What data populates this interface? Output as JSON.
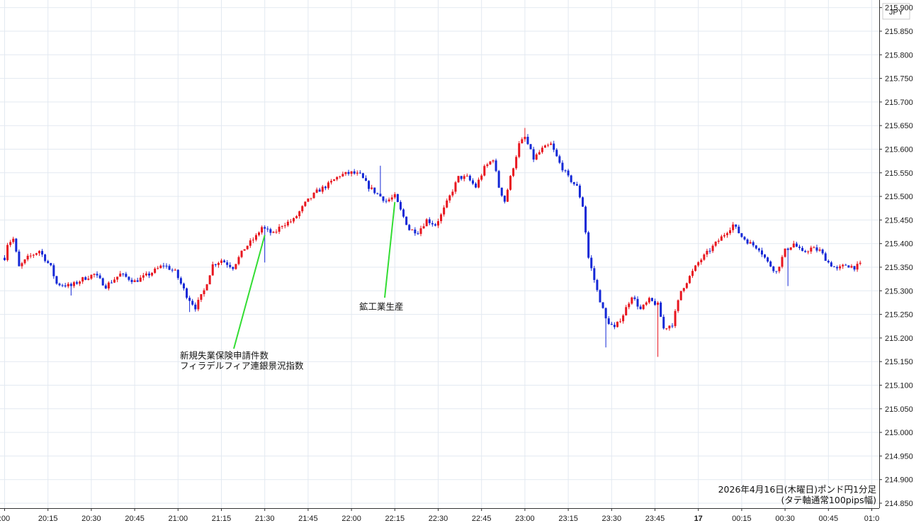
{
  "chart_data": {
    "type": "candlestick",
    "currency_label": "JPY",
    "caption_line1": "2026年4月16日(木曜日)ポンド円1分足",
    "caption_line2": "(タテ軸通常100pips幅)",
    "y_ticks": [
      "215.900",
      "215.850",
      "215.800",
      "215.750",
      "215.700",
      "215.650",
      "215.600",
      "215.550",
      "215.500",
      "215.450",
      "215.400",
      "215.350",
      "215.300",
      "215.250",
      "215.200",
      "215.150",
      "215.100",
      "215.050",
      "215.000",
      "214.950",
      "214.900",
      "214.850"
    ],
    "x_ticks": [
      ":00",
      "20:15",
      "20:30",
      "20:45",
      "21:00",
      "21:15",
      "21:30",
      "21:45",
      "22:00",
      "22:15",
      "22:30",
      "22:45",
      "23:00",
      "23:15",
      "23:30",
      "23:45",
      "17",
      "00:15",
      "00:30",
      "00:45",
      "01:0"
    ],
    "ylim": [
      214.85,
      215.9
    ],
    "grid": true,
    "up_color": "#e8161f",
    "down_color": "#1428d6",
    "annotation_color": "#33dd33",
    "annotations": [
      {
        "time": "21:30",
        "lines": [
          "新規失業保険申請件数",
          "フィラデルフィア連銀景況指数"
        ]
      },
      {
        "time": "22:15",
        "lines": [
          "鉱工業生産"
        ]
      }
    ],
    "close_path_hhmm_price": [
      [
        "20:00",
        215.37
      ],
      [
        "20:01",
        215.4
      ],
      [
        "20:03",
        215.41
      ],
      [
        "20:05",
        215.35
      ],
      [
        "20:08",
        215.37
      ],
      [
        "20:12",
        215.385
      ],
      [
        "20:16",
        215.35
      ],
      [
        "20:18",
        215.315
      ],
      [
        "20:23",
        215.31
      ],
      [
        "20:27",
        215.325
      ],
      [
        "20:31",
        215.335
      ],
      [
        "20:35",
        215.31
      ],
      [
        "20:40",
        215.335
      ],
      [
        "20:45",
        215.32
      ],
      [
        "20:50",
        215.335
      ],
      [
        "20:55",
        215.355
      ],
      [
        "20:59",
        215.34
      ],
      [
        "21:03",
        215.29
      ],
      [
        "21:06",
        215.265
      ],
      [
        "21:09",
        215.3
      ],
      [
        "21:12",
        215.355
      ],
      [
        "21:15",
        215.365
      ],
      [
        "21:19",
        215.35
      ],
      [
        "21:23",
        215.39
      ],
      [
        "21:27",
        215.415
      ],
      [
        "21:29",
        215.435
      ],
      [
        "21:30",
        215.43
      ],
      [
        "21:33",
        215.42
      ],
      [
        "21:36",
        215.44
      ],
      [
        "21:40",
        215.45
      ],
      [
        "21:44",
        215.485
      ],
      [
        "21:48",
        215.51
      ],
      [
        "21:52",
        215.525
      ],
      [
        "21:56",
        215.545
      ],
      [
        "22:00",
        215.55
      ],
      [
        "22:03",
        215.545
      ],
      [
        "22:06",
        215.52
      ],
      [
        "22:09",
        215.505
      ],
      [
        "22:12",
        215.49
      ],
      [
        "22:15",
        215.5
      ],
      [
        "22:17",
        215.47
      ],
      [
        "22:20",
        215.43
      ],
      [
        "22:23",
        215.425
      ],
      [
        "22:26",
        215.45
      ],
      [
        "22:29",
        215.44
      ],
      [
        "22:31",
        215.46
      ],
      [
        "22:34",
        215.5
      ],
      [
        "22:37",
        215.54
      ],
      [
        "22:40",
        215.54
      ],
      [
        "22:43",
        215.52
      ],
      [
        "22:46",
        215.56
      ],
      [
        "22:49",
        215.58
      ],
      [
        "22:51",
        215.52
      ],
      [
        "22:53",
        215.49
      ],
      [
        "22:55",
        215.54
      ],
      [
        "22:58",
        215.61
      ],
      [
        "23:00",
        215.625
      ],
      [
        "23:03",
        215.58
      ],
      [
        "23:06",
        215.6
      ],
      [
        "23:09",
        215.61
      ],
      [
        "23:12",
        215.57
      ],
      [
        "23:15",
        215.54
      ],
      [
        "23:18",
        215.52
      ],
      [
        "23:20",
        215.48
      ],
      [
        "23:22",
        215.37
      ],
      [
        "23:25",
        215.3
      ],
      [
        "23:28",
        215.24
      ],
      [
        "23:31",
        215.22
      ],
      [
        "23:34",
        215.25
      ],
      [
        "23:37",
        215.29
      ],
      [
        "23:40",
        215.26
      ],
      [
        "23:43",
        215.28
      ],
      [
        "23:46",
        215.27
      ],
      [
        "23:48",
        215.22
      ],
      [
        "23:51",
        215.23
      ],
      [
        "23:54",
        215.3
      ],
      [
        "23:57",
        215.33
      ],
      [
        "00:00",
        215.36
      ],
      [
        "00:03",
        215.38
      ],
      [
        "00:06",
        215.4
      ],
      [
        "00:09",
        215.42
      ],
      [
        "00:12",
        215.44
      ],
      [
        "00:15",
        215.415
      ],
      [
        "00:18",
        215.4
      ],
      [
        "00:21",
        215.39
      ],
      [
        "00:24",
        215.36
      ],
      [
        "00:27",
        215.34
      ],
      [
        "00:30",
        215.385
      ],
      [
        "00:33",
        215.4
      ],
      [
        "00:36",
        215.38
      ],
      [
        "00:39",
        215.39
      ],
      [
        "00:42",
        215.385
      ],
      [
        "00:45",
        215.36
      ],
      [
        "00:48",
        215.345
      ],
      [
        "00:51",
        215.355
      ],
      [
        "00:54",
        215.35
      ],
      [
        "00:56",
        215.355
      ]
    ],
    "wick_extremes_hhmm_price": [
      [
        "21:30",
        215.36
      ],
      [
        "23:00",
        215.645
      ],
      [
        "23:28",
        215.18
      ],
      [
        "23:46",
        215.16
      ],
      [
        "20:23",
        215.29
      ],
      [
        "21:04",
        215.255
      ],
      [
        "22:10",
        215.565
      ],
      [
        "00:31",
        215.31
      ]
    ]
  }
}
